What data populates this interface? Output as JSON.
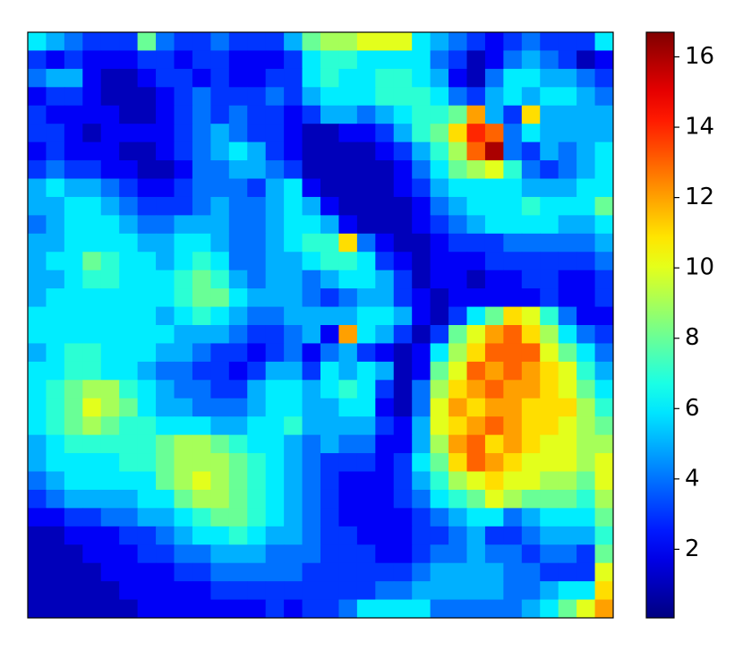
{
  "chart_data": {
    "type": "heatmap",
    "colormap": "jet",
    "zlim": [
      0.05,
      16.7
    ],
    "zticks": [
      2,
      4,
      6,
      8,
      10,
      12,
      14,
      16
    ],
    "z": [
      [
        6,
        5,
        4,
        3,
        3,
        3,
        8,
        4,
        3,
        3,
        4,
        3,
        3,
        3,
        5,
        8,
        9,
        9,
        10,
        10,
        10,
        6,
        5,
        4,
        3,
        2,
        3,
        4,
        3,
        3,
        3,
        6
      ],
      [
        3,
        2,
        3,
        2,
        2,
        2,
        3,
        3,
        2,
        3,
        3,
        2,
        2,
        2,
        3,
        6,
        7,
        7,
        6,
        6,
        6,
        6,
        4,
        3,
        1,
        2,
        4,
        5,
        4,
        3,
        1,
        2
      ],
      [
        4,
        5,
        5,
        2,
        1,
        1,
        2,
        3,
        3,
        2,
        3,
        2,
        2,
        3,
        3,
        6,
        7,
        6,
        6,
        7,
        7,
        6,
        5,
        2,
        1,
        4,
        6,
        6,
        5,
        5,
        4,
        3
      ],
      [
        2,
        3,
        3,
        2,
        1,
        1,
        1,
        2,
        3,
        4,
        3,
        3,
        3,
        4,
        3,
        5,
        6,
        6,
        6,
        7,
        7,
        7,
        6,
        4,
        3,
        5,
        6,
        5,
        6,
        6,
        5,
        4
      ],
      [
        3,
        2,
        2,
        2,
        2,
        1,
        1,
        2,
        3,
        4,
        3,
        4,
        3,
        3,
        2,
        3,
        5,
        5,
        4,
        5,
        6,
        7,
        7,
        8,
        12,
        5,
        3,
        11,
        5,
        5,
        5,
        5
      ],
      [
        3,
        3,
        2,
        1,
        2,
        2,
        2,
        2,
        3,
        4,
        5,
        4,
        3,
        3,
        2,
        1,
        1,
        2,
        2,
        3,
        5,
        7,
        8,
        11,
        14,
        13,
        4,
        6,
        5,
        5,
        5,
        5
      ],
      [
        2,
        3,
        2,
        2,
        2,
        1,
        1,
        2,
        3,
        4,
        5,
        6,
        5,
        3,
        2,
        1,
        1,
        1,
        1,
        2,
        3,
        5,
        7,
        9,
        13,
        16,
        4,
        3,
        5,
        4,
        5,
        6
      ],
      [
        3,
        4,
        3,
        3,
        2,
        2,
        1,
        1,
        2,
        4,
        4,
        5,
        5,
        4,
        3,
        1,
        1,
        1,
        1,
        1,
        2,
        4,
        6,
        8,
        9,
        10,
        7,
        4,
        3,
        4,
        5,
        6
      ],
      [
        5,
        6,
        5,
        5,
        4,
        3,
        2,
        2,
        3,
        4,
        4,
        4,
        3,
        5,
        6,
        2,
        1,
        1,
        1,
        1,
        2,
        3,
        5,
        6,
        6,
        6,
        6,
        5,
        5,
        5,
        6,
        6
      ],
      [
        5,
        5,
        6,
        6,
        5,
        4,
        3,
        3,
        3,
        4,
        5,
        4,
        4,
        5,
        6,
        5,
        2,
        1,
        1,
        1,
        1,
        2,
        4,
        5,
        6,
        6,
        6,
        7,
        6,
        6,
        6,
        8
      ],
      [
        4,
        5,
        6,
        6,
        6,
        5,
        4,
        4,
        5,
        5,
        5,
        4,
        4,
        5,
        6,
        6,
        5,
        2,
        1,
        1,
        1,
        2,
        3,
        4,
        5,
        6,
        6,
        6,
        6,
        5,
        5,
        6
      ],
      [
        5,
        5,
        6,
        6,
        6,
        6,
        5,
        5,
        6,
        6,
        5,
        4,
        4,
        5,
        6,
        7,
        7,
        11,
        4,
        2,
        1,
        1,
        2,
        3,
        3,
        3,
        4,
        4,
        4,
        4,
        4,
        5
      ],
      [
        5,
        6,
        6,
        8,
        7,
        6,
        6,
        5,
        6,
        7,
        6,
        4,
        4,
        5,
        5,
        6,
        7,
        7,
        6,
        3,
        2,
        1,
        2,
        2,
        2,
        3,
        3,
        3,
        3,
        3,
        3,
        4
      ],
      [
        5,
        5,
        6,
        7,
        7,
        6,
        6,
        6,
        7,
        8,
        7,
        5,
        4,
        5,
        5,
        4,
        5,
        6,
        6,
        5,
        3,
        1,
        2,
        2,
        1,
        2,
        2,
        3,
        3,
        2,
        2,
        3
      ],
      [
        5,
        6,
        6,
        6,
        6,
        6,
        6,
        6,
        7,
        8,
        8,
        6,
        5,
        5,
        5,
        4,
        3,
        4,
        5,
        5,
        3,
        2,
        1,
        2,
        2,
        2,
        2,
        2,
        3,
        2,
        2,
        3
      ],
      [
        6,
        6,
        6,
        6,
        6,
        6,
        6,
        5,
        6,
        7,
        6,
        5,
        4,
        4,
        5,
        5,
        5,
        5,
        6,
        6,
        5,
        2,
        1,
        3,
        6,
        8,
        11,
        10,
        7,
        4,
        2,
        2
      ],
      [
        6,
        6,
        6,
        6,
        6,
        6,
        6,
        6,
        5,
        5,
        5,
        4,
        3,
        3,
        4,
        5,
        2,
        12,
        6,
        5,
        3,
        1,
        3,
        8,
        10,
        12,
        13,
        11,
        9,
        6,
        4,
        3
      ],
      [
        5,
        6,
        7,
        7,
        6,
        6,
        6,
        5,
        5,
        4,
        3,
        3,
        2,
        3,
        4,
        2,
        4,
        5,
        3,
        2,
        1,
        2,
        6,
        9,
        11,
        13,
        13,
        13,
        10,
        8,
        6,
        4
      ],
      [
        6,
        6,
        7,
        7,
        6,
        6,
        5,
        4,
        4,
        3,
        3,
        2,
        3,
        5,
        5,
        3,
        6,
        5,
        6,
        5,
        1,
        2,
        8,
        10,
        13,
        12,
        13,
        12,
        11,
        10,
        7,
        5
      ],
      [
        6,
        7,
        8,
        9,
        9,
        7,
        6,
        5,
        4,
        4,
        3,
        3,
        5,
        6,
        6,
        5,
        6,
        7,
        6,
        3,
        1,
        4,
        9,
        11,
        12,
        13,
        12,
        12,
        11,
        10,
        8,
        6
      ],
      [
        6,
        7,
        8,
        10,
        9,
        8,
        6,
        5,
        5,
        4,
        4,
        4,
        5,
        6,
        6,
        5,
        5,
        6,
        6,
        2,
        1,
        4,
        10,
        12,
        11,
        12,
        12,
        11,
        11,
        11,
        9,
        7
      ],
      [
        6,
        7,
        8,
        9,
        8,
        7,
        7,
        6,
        6,
        6,
        5,
        5,
        6,
        6,
        7,
        5,
        5,
        5,
        5,
        3,
        2,
        5,
        10,
        11,
        12,
        13,
        12,
        11,
        11,
        10,
        9,
        8
      ],
      [
        5,
        6,
        7,
        7,
        7,
        7,
        7,
        8,
        9,
        9,
        8,
        7,
        6,
        6,
        5,
        4,
        5,
        4,
        4,
        2,
        2,
        5,
        9,
        12,
        13,
        11,
        12,
        11,
        10,
        10,
        9,
        9
      ],
      [
        5,
        6,
        6,
        6,
        6,
        7,
        7,
        8,
        9,
        9,
        9,
        8,
        7,
        6,
        5,
        4,
        3,
        3,
        3,
        2,
        3,
        6,
        8,
        11,
        13,
        12,
        11,
        10,
        10,
        10,
        9,
        10
      ],
      [
        4,
        5,
        6,
        6,
        6,
        6,
        6,
        8,
        9,
        10,
        9,
        8,
        7,
        6,
        5,
        4,
        3,
        2,
        2,
        2,
        3,
        5,
        7,
        9,
        10,
        11,
        10,
        10,
        9,
        9,
        8,
        10
      ],
      [
        3,
        4,
        5,
        5,
        5,
        5,
        6,
        6,
        8,
        9,
        9,
        8,
        7,
        6,
        5,
        4,
        3,
        2,
        2,
        2,
        3,
        4,
        6,
        7,
        8,
        10,
        9,
        8,
        8,
        8,
        7,
        9
      ],
      [
        2,
        2,
        3,
        3,
        4,
        4,
        5,
        5,
        6,
        7,
        8,
        8,
        7,
        6,
        5,
        4,
        3,
        2,
        2,
        2,
        2,
        3,
        4,
        5,
        6,
        6,
        4,
        5,
        6,
        6,
        6,
        8
      ],
      [
        1,
        1,
        2,
        2,
        2,
        3,
        3,
        4,
        5,
        6,
        6,
        7,
        6,
        5,
        5,
        4,
        3,
        3,
        2,
        2,
        2,
        3,
        3,
        4,
        5,
        3,
        3,
        4,
        5,
        5,
        5,
        7
      ],
      [
        1,
        1,
        1,
        2,
        2,
        2,
        3,
        3,
        4,
        4,
        5,
        5,
        5,
        4,
        4,
        4,
        3,
        3,
        3,
        2,
        2,
        3,
        4,
        4,
        5,
        4,
        4,
        3,
        4,
        4,
        3,
        8
      ],
      [
        1,
        1,
        1,
        1,
        2,
        2,
        2,
        2,
        3,
        3,
        4,
        4,
        4,
        4,
        4,
        3,
        3,
        3,
        3,
        3,
        3,
        4,
        5,
        5,
        5,
        5,
        4,
        4,
        3,
        3,
        3,
        10
      ],
      [
        1,
        1,
        1,
        1,
        1,
        2,
        2,
        2,
        2,
        2,
        3,
        3,
        3,
        3,
        3,
        3,
        3,
        3,
        3,
        4,
        4,
        5,
        5,
        5,
        5,
        5,
        4,
        4,
        5,
        6,
        6,
        11
      ],
      [
        1,
        1,
        1,
        1,
        1,
        1,
        2,
        2,
        2,
        2,
        2,
        2,
        2,
        3,
        2,
        3,
        3,
        4,
        6,
        6,
        6,
        6,
        4,
        4,
        4,
        4,
        4,
        5,
        6,
        8,
        10,
        12
      ]
    ]
  }
}
